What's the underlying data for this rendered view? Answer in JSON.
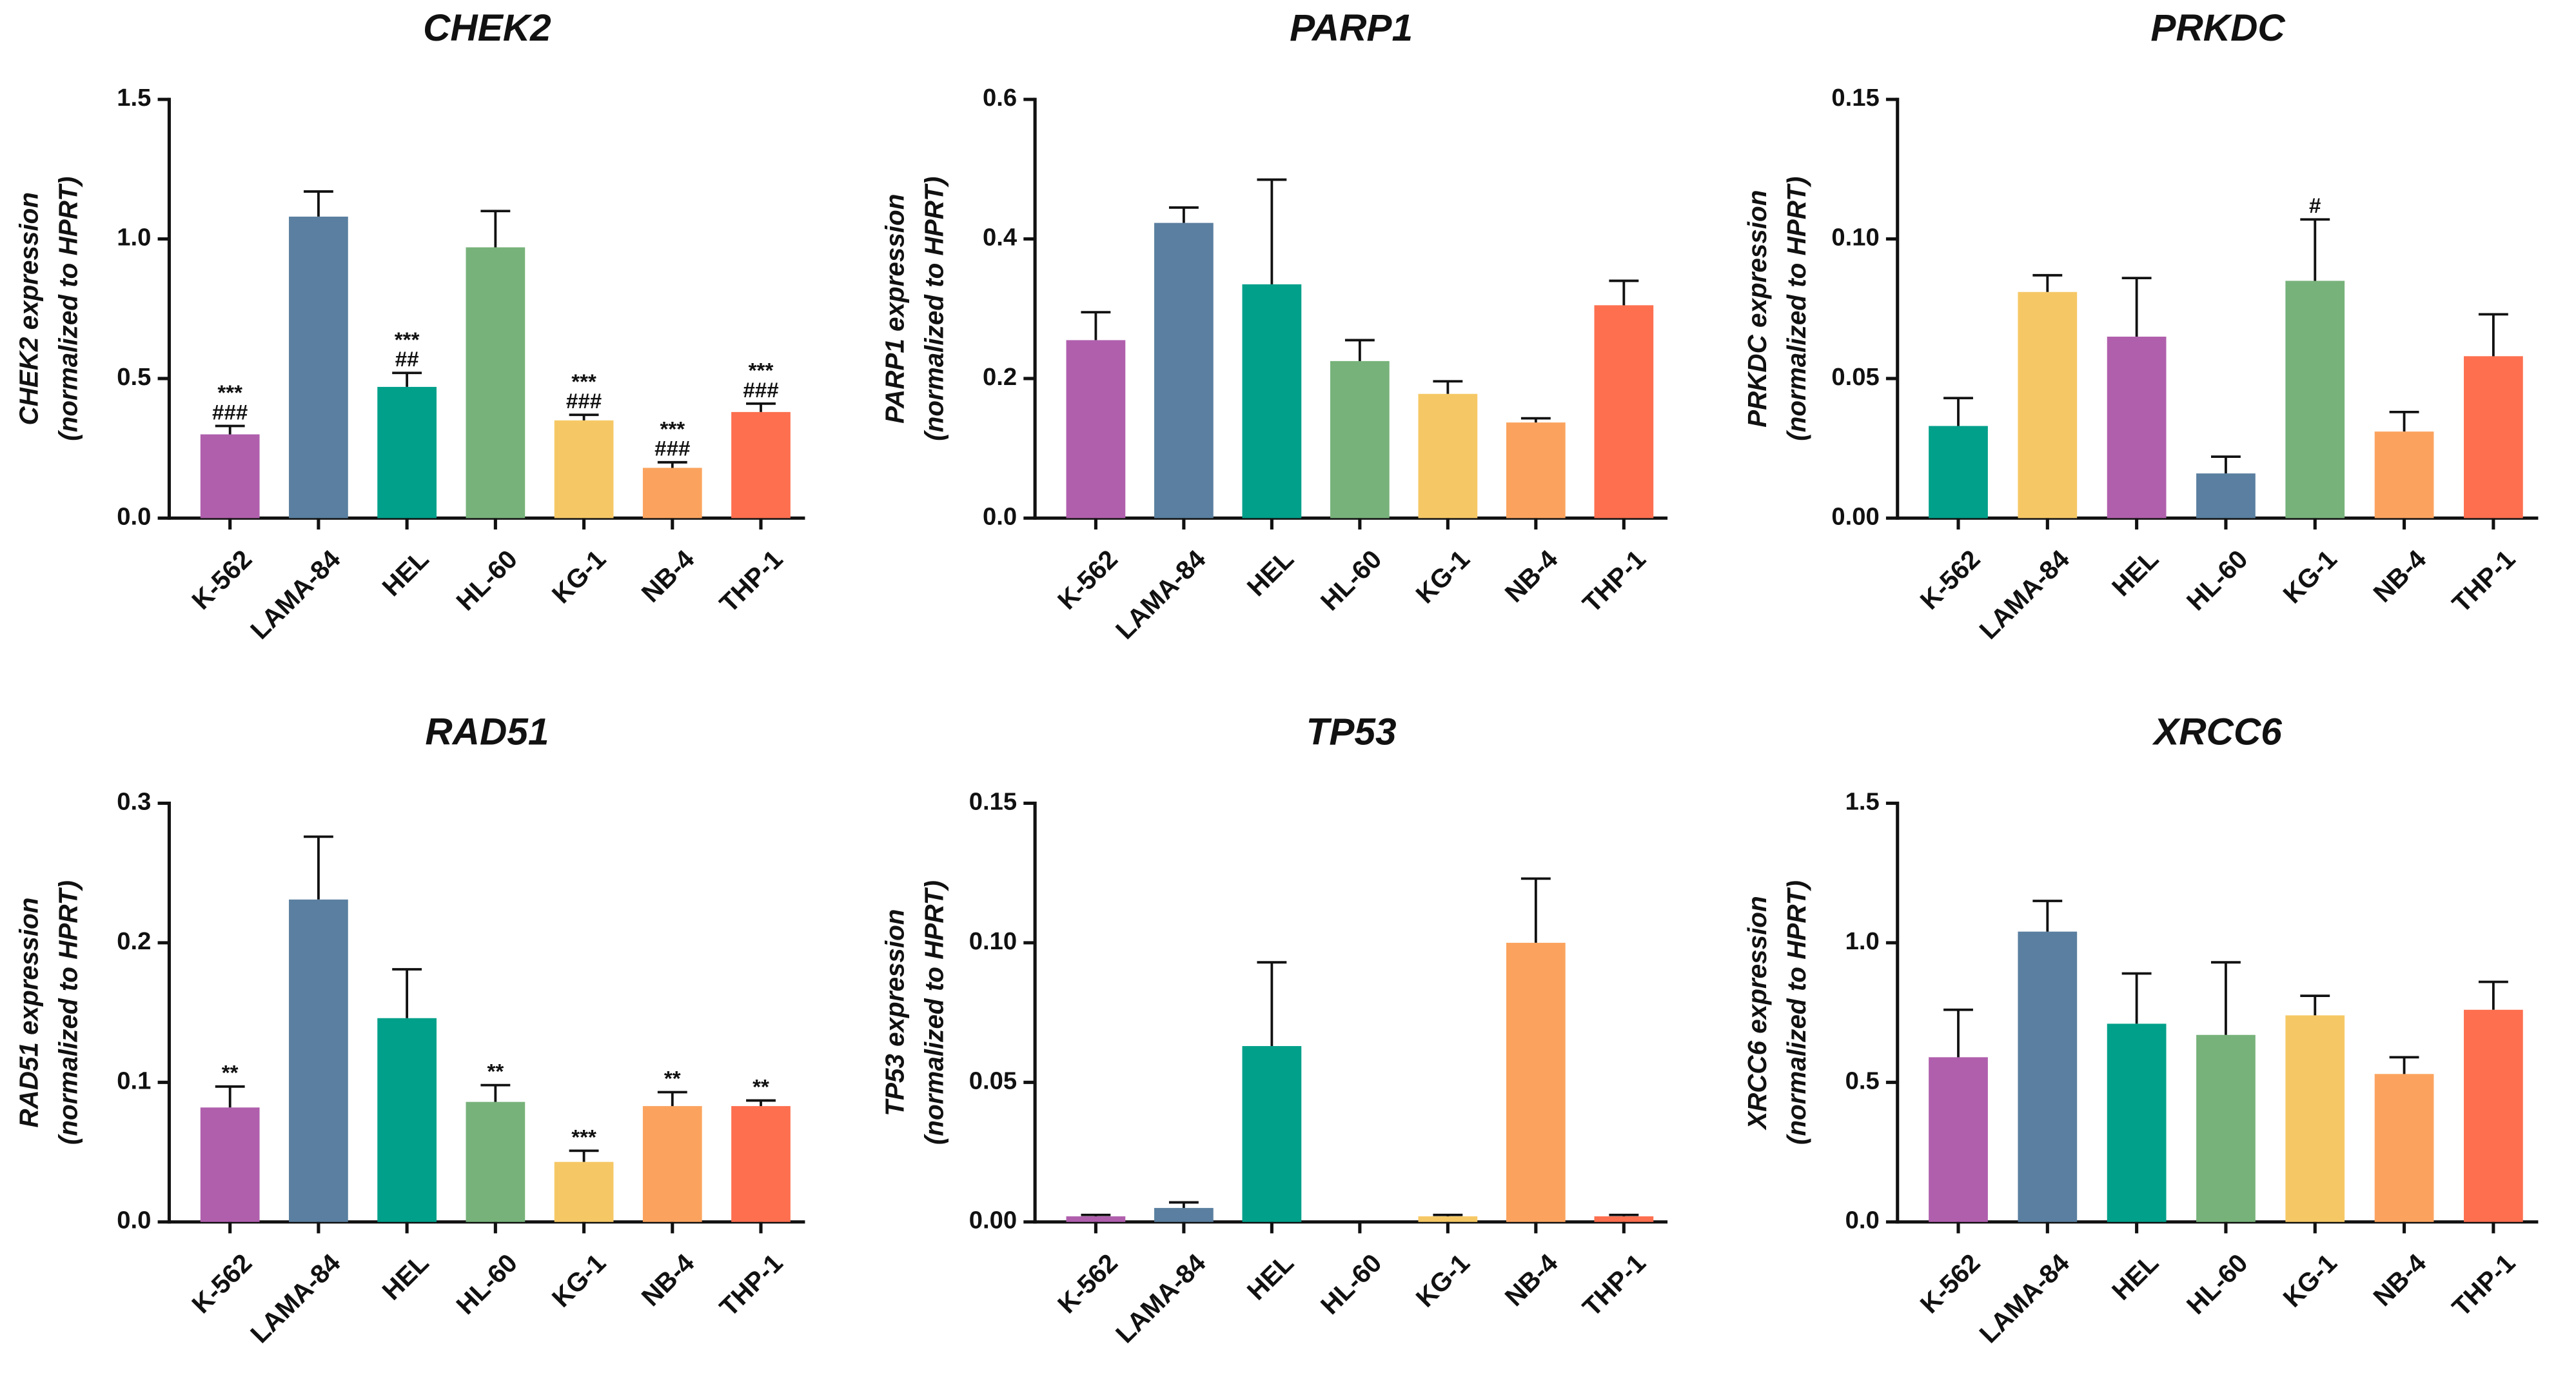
{
  "chart_data": [
    {
      "type": "bar",
      "title": "CHEK2",
      "ylabel": [
        "CHEK2 expression",
        "(normalized to HPRT)"
      ],
      "categories": [
        "K-562",
        "LAMA-84",
        "HEL",
        "HL-60",
        "KG-1",
        "NB-4",
        "THP-1"
      ],
      "values": [
        0.3,
        1.08,
        0.47,
        0.97,
        0.35,
        0.18,
        0.38
      ],
      "errors": [
        0.03,
        0.09,
        0.05,
        0.13,
        0.02,
        0.02,
        0.03
      ],
      "colors": [
        "#b05fad",
        "#5a7fa0",
        "#00a08a",
        "#77b27a",
        "#f6c865",
        "#fba35e",
        "#fd6f4f"
      ],
      "annotations": [
        [
          "***",
          "###"
        ],
        null,
        [
          "***",
          "##"
        ],
        null,
        [
          "***",
          "###"
        ],
        [
          "***",
          "###"
        ],
        [
          "***",
          "###"
        ]
      ],
      "ylim": [
        0,
        1.5
      ],
      "yticks": [
        {
          "value": 0,
          "label": "0.0"
        },
        0.5,
        {
          "value": 1,
          "label": "1.0"
        },
        1.5
      ]
    },
    {
      "type": "bar",
      "title": "PARP1",
      "ylabel": [
        "PARP1 expression",
        "(normalized to HPRT)"
      ],
      "categories": [
        "K-562",
        "LAMA-84",
        "HEL",
        "HL-60",
        "KG-1",
        "NB-4",
        "THP-1"
      ],
      "values": [
        0.255,
        0.423,
        0.335,
        0.225,
        0.178,
        0.137,
        0.305
      ],
      "errors": [
        0.04,
        0.022,
        0.15,
        0.03,
        0.018,
        0.006,
        0.035
      ],
      "colors": [
        "#b05fad",
        "#5a7fa0",
        "#00a08a",
        "#77b27a",
        "#f6c865",
        "#fba35e",
        "#fd6f4f"
      ],
      "ylim": [
        0,
        0.6
      ],
      "yticks": [
        {
          "value": 0,
          "label": "0.0"
        },
        0.2,
        0.4,
        0.6
      ]
    },
    {
      "type": "bar",
      "title": "PRKDC",
      "ylabel": [
        "PRKDC expression",
        "(normalized to HPRT)"
      ],
      "categories": [
        "K-562",
        "LAMA-84",
        "HEL",
        "HL-60",
        "KG-1",
        "NB-4",
        "THP-1"
      ],
      "values": [
        0.033,
        0.081,
        0.065,
        0.016,
        0.085,
        0.031,
        0.058
      ],
      "errors": [
        0.01,
        0.006,
        0.021,
        0.006,
        0.022,
        0.007,
        0.015
      ],
      "colors": [
        "#00a08a",
        "#f6c865",
        "#b05fad",
        "#5a7fa0",
        "#77b27a",
        "#fba35e",
        "#fd6f4f"
      ],
      "annotations": [
        null,
        null,
        null,
        null,
        [
          "#"
        ],
        null,
        null
      ],
      "ylim": [
        0,
        0.15
      ],
      "yticks": [
        {
          "value": 0,
          "label": "0.00"
        },
        0.05,
        {
          "value": 0.1,
          "label": "0.10"
        },
        0.15
      ]
    },
    {
      "type": "bar",
      "title": "RAD51",
      "ylabel": [
        "RAD51 expression",
        "(normalized to HPRT)"
      ],
      "categories": [
        "K-562",
        "LAMA-84",
        "HEL",
        "HL-60",
        "KG-1",
        "NB-4",
        "THP-1"
      ],
      "values": [
        0.082,
        0.231,
        0.146,
        0.086,
        0.043,
        0.083,
        0.083
      ],
      "errors": [
        0.015,
        0.045,
        0.035,
        0.012,
        0.008,
        0.01,
        0.004
      ],
      "colors": [
        "#b05fad",
        "#5a7fa0",
        "#00a08a",
        "#77b27a",
        "#f6c865",
        "#fba35e",
        "#fd6f4f"
      ],
      "annotations": [
        [
          "**"
        ],
        null,
        null,
        [
          "**"
        ],
        [
          "***"
        ],
        [
          "**"
        ],
        [
          "**"
        ]
      ],
      "ylim": [
        0,
        0.3
      ],
      "yticks": [
        {
          "value": 0,
          "label": "0.0"
        },
        0.1,
        0.2,
        0.3
      ]
    },
    {
      "type": "bar",
      "title": "TP53",
      "ylabel": [
        "TP53 expression",
        "(normalized to HPRT)"
      ],
      "categories": [
        "K-562",
        "LAMA-84",
        "HEL",
        "HL-60",
        "KG-1",
        "NB-4",
        "THP-1"
      ],
      "values": [
        0.002,
        0.005,
        0.063,
        0,
        0.002,
        0.1,
        0.002
      ],
      "errors": [
        0.0005,
        0.002,
        0.03,
        0,
        0.0005,
        0.023,
        0.0005
      ],
      "colors": [
        "#b05fad",
        "#5a7fa0",
        "#00a08a",
        "#77b27a",
        "#f6c865",
        "#fba35e",
        "#fd6f4f"
      ],
      "ylim": [
        0,
        0.15
      ],
      "yticks": [
        {
          "value": 0,
          "label": "0.00"
        },
        0.05,
        {
          "value": 0.1,
          "label": "0.10"
        },
        0.15
      ]
    },
    {
      "type": "bar",
      "title": "XRCC6",
      "ylabel": [
        "XRCC6 expression",
        "(normalized to HPRT)"
      ],
      "categories": [
        "K-562",
        "LAMA-84",
        "HEL",
        "HL-60",
        "KG-1",
        "NB-4",
        "THP-1"
      ],
      "values": [
        0.59,
        1.04,
        0.71,
        0.67,
        0.74,
        0.53,
        0.76
      ],
      "errors": [
        0.17,
        0.11,
        0.18,
        0.26,
        0.07,
        0.06,
        0.1
      ],
      "colors": [
        "#b05fad",
        "#5a7fa0",
        "#00a08a",
        "#77b27a",
        "#f6c865",
        "#fba35e",
        "#fd6f4f"
      ],
      "ylim": [
        0,
        1.5
      ],
      "yticks": [
        {
          "value": 0,
          "label": "0.0"
        },
        0.5,
        {
          "value": 1,
          "label": "1.0"
        },
        1.5
      ]
    }
  ]
}
